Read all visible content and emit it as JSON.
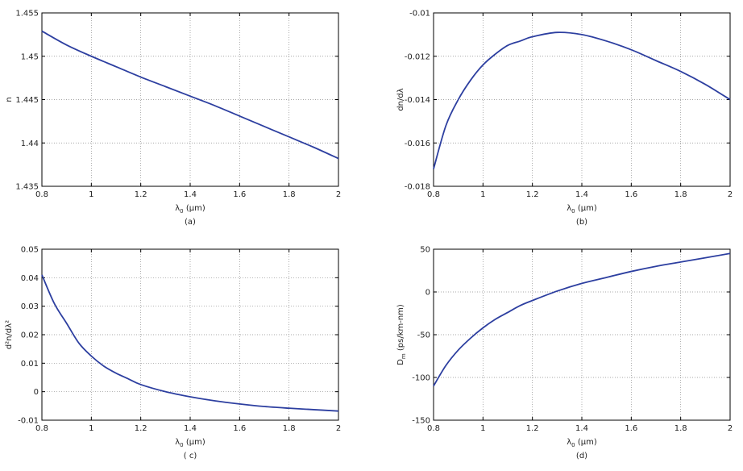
{
  "colors": {
    "line": "#2d3fa0",
    "axis": "#000000",
    "grid": "#8a8a8a",
    "background": "#ffffff"
  },
  "chart_data": [
    {
      "id": "a",
      "type": "line",
      "caption": "(a)",
      "xlabel": "λ",
      "xlabel_sub": "0",
      "xlabel_unit": " (μm)",
      "ylabel": "n",
      "xlim": [
        0.8,
        2
      ],
      "ylim": [
        1.435,
        1.455
      ],
      "xticks": [
        0.8,
        1,
        1.2,
        1.4,
        1.6,
        1.8,
        2
      ],
      "yticks": [
        1.435,
        1.44,
        1.445,
        1.45,
        1.455
      ],
      "xtick_labels": [
        "0.8",
        "1",
        "1.2",
        "1.4",
        "1.6",
        "1.8",
        "2"
      ],
      "ytick_labels": [
        "1.435",
        "1.44",
        "1.445",
        "1.45",
        "1.455"
      ],
      "grid": true,
      "series": [
        {
          "x": [
            0.8,
            0.9,
            1.0,
            1.1,
            1.2,
            1.3,
            1.4,
            1.5,
            1.6,
            1.7,
            1.8,
            1.9,
            2.0
          ],
          "y": [
            1.4529,
            1.4513,
            1.45,
            1.4488,
            1.4476,
            1.4465,
            1.4454,
            1.4443,
            1.4431,
            1.4419,
            1.4407,
            1.4395,
            1.4382
          ]
        }
      ]
    },
    {
      "id": "b",
      "type": "line",
      "caption": "(b)",
      "xlabel": "λ",
      "xlabel_sub": "0",
      "xlabel_unit": " (μm)",
      "ylabel": "dn/dλ",
      "xlim": [
        0.8,
        2
      ],
      "ylim": [
        -0.018,
        -0.01
      ],
      "xticks": [
        0.8,
        1,
        1.2,
        1.4,
        1.6,
        1.8,
        2
      ],
      "yticks": [
        -0.018,
        -0.016,
        -0.014,
        -0.012,
        -0.01
      ],
      "xtick_labels": [
        "0.8",
        "1",
        "1.2",
        "1.4",
        "1.6",
        "1.8",
        "2"
      ],
      "ytick_labels": [
        "-0.018",
        "-0.016",
        "-0.014",
        "-0.012",
        "-0.01"
      ],
      "grid": true,
      "series": [
        {
          "x": [
            0.8,
            0.85,
            0.9,
            0.95,
            1.0,
            1.05,
            1.1,
            1.15,
            1.2,
            1.3,
            1.4,
            1.5,
            1.6,
            1.7,
            1.8,
            1.9,
            2.0
          ],
          "y": [
            -0.0172,
            -0.0152,
            -0.014,
            -0.0131,
            -0.0124,
            -0.0119,
            -0.0115,
            -0.0113,
            -0.0111,
            -0.0109,
            -0.011,
            -0.0113,
            -0.0117,
            -0.0122,
            -0.0127,
            -0.0133,
            -0.014
          ]
        }
      ]
    },
    {
      "id": "c",
      "type": "line",
      "caption": "( c)",
      "xlabel": "λ",
      "xlabel_sub": "0",
      "xlabel_unit": " (μm)",
      "ylabel": "d²n/dλ²",
      "xlim": [
        0.8,
        2
      ],
      "ylim": [
        -0.01,
        0.05
      ],
      "xticks": [
        0.8,
        1,
        1.2,
        1.4,
        1.6,
        1.8,
        2
      ],
      "yticks": [
        -0.01,
        0,
        0.01,
        0.02,
        0.03,
        0.04,
        0.05
      ],
      "xtick_labels": [
        "0.8",
        "1",
        "1.2",
        "1.4",
        "1.6",
        "1.8",
        "2"
      ],
      "ytick_labels": [
        "-0.01",
        "0",
        "0.01",
        "0.02",
        "0.03",
        "0.04",
        "0.05"
      ],
      "grid": true,
      "series": [
        {
          "x": [
            0.8,
            0.85,
            0.9,
            0.95,
            1.0,
            1.05,
            1.1,
            1.15,
            1.2,
            1.3,
            1.4,
            1.5,
            1.6,
            1.7,
            1.8,
            1.9,
            2.0
          ],
          "y": [
            0.041,
            0.031,
            0.024,
            0.017,
            0.0125,
            0.009,
            0.0065,
            0.0045,
            0.0025,
            0.0,
            -0.0018,
            -0.0032,
            -0.0043,
            -0.0052,
            -0.0058,
            -0.0063,
            -0.0068
          ]
        }
      ]
    },
    {
      "id": "d",
      "type": "line",
      "caption": "(d)",
      "xlabel": "λ",
      "xlabel_sub": "0",
      "xlabel_unit": " (μm)",
      "ylabel": "D",
      "ylabel_sub": "m",
      "ylabel_unit": " (ps/km-nm)",
      "xlim": [
        0.8,
        2
      ],
      "ylim": [
        -150,
        50
      ],
      "xticks": [
        0.8,
        1,
        1.2,
        1.4,
        1.6,
        1.8,
        2
      ],
      "yticks": [
        -150,
        -100,
        -50,
        0,
        50
      ],
      "xtick_labels": [
        "0.8",
        "1",
        "1.2",
        "1.4",
        "1.6",
        "1.8",
        "2"
      ],
      "ytick_labels": [
        "-150",
        "-100",
        "-50",
        "0",
        "50"
      ],
      "grid": true,
      "series": [
        {
          "x": [
            0.8,
            0.85,
            0.9,
            0.95,
            1.0,
            1.05,
            1.1,
            1.15,
            1.2,
            1.3,
            1.4,
            1.5,
            1.6,
            1.7,
            1.8,
            1.9,
            2.0
          ],
          "y": [
            -110,
            -86,
            -68,
            -54,
            -42,
            -32,
            -24,
            -16,
            -10,
            1,
            10,
            17,
            24,
            30,
            35,
            40,
            45
          ]
        }
      ]
    }
  ]
}
